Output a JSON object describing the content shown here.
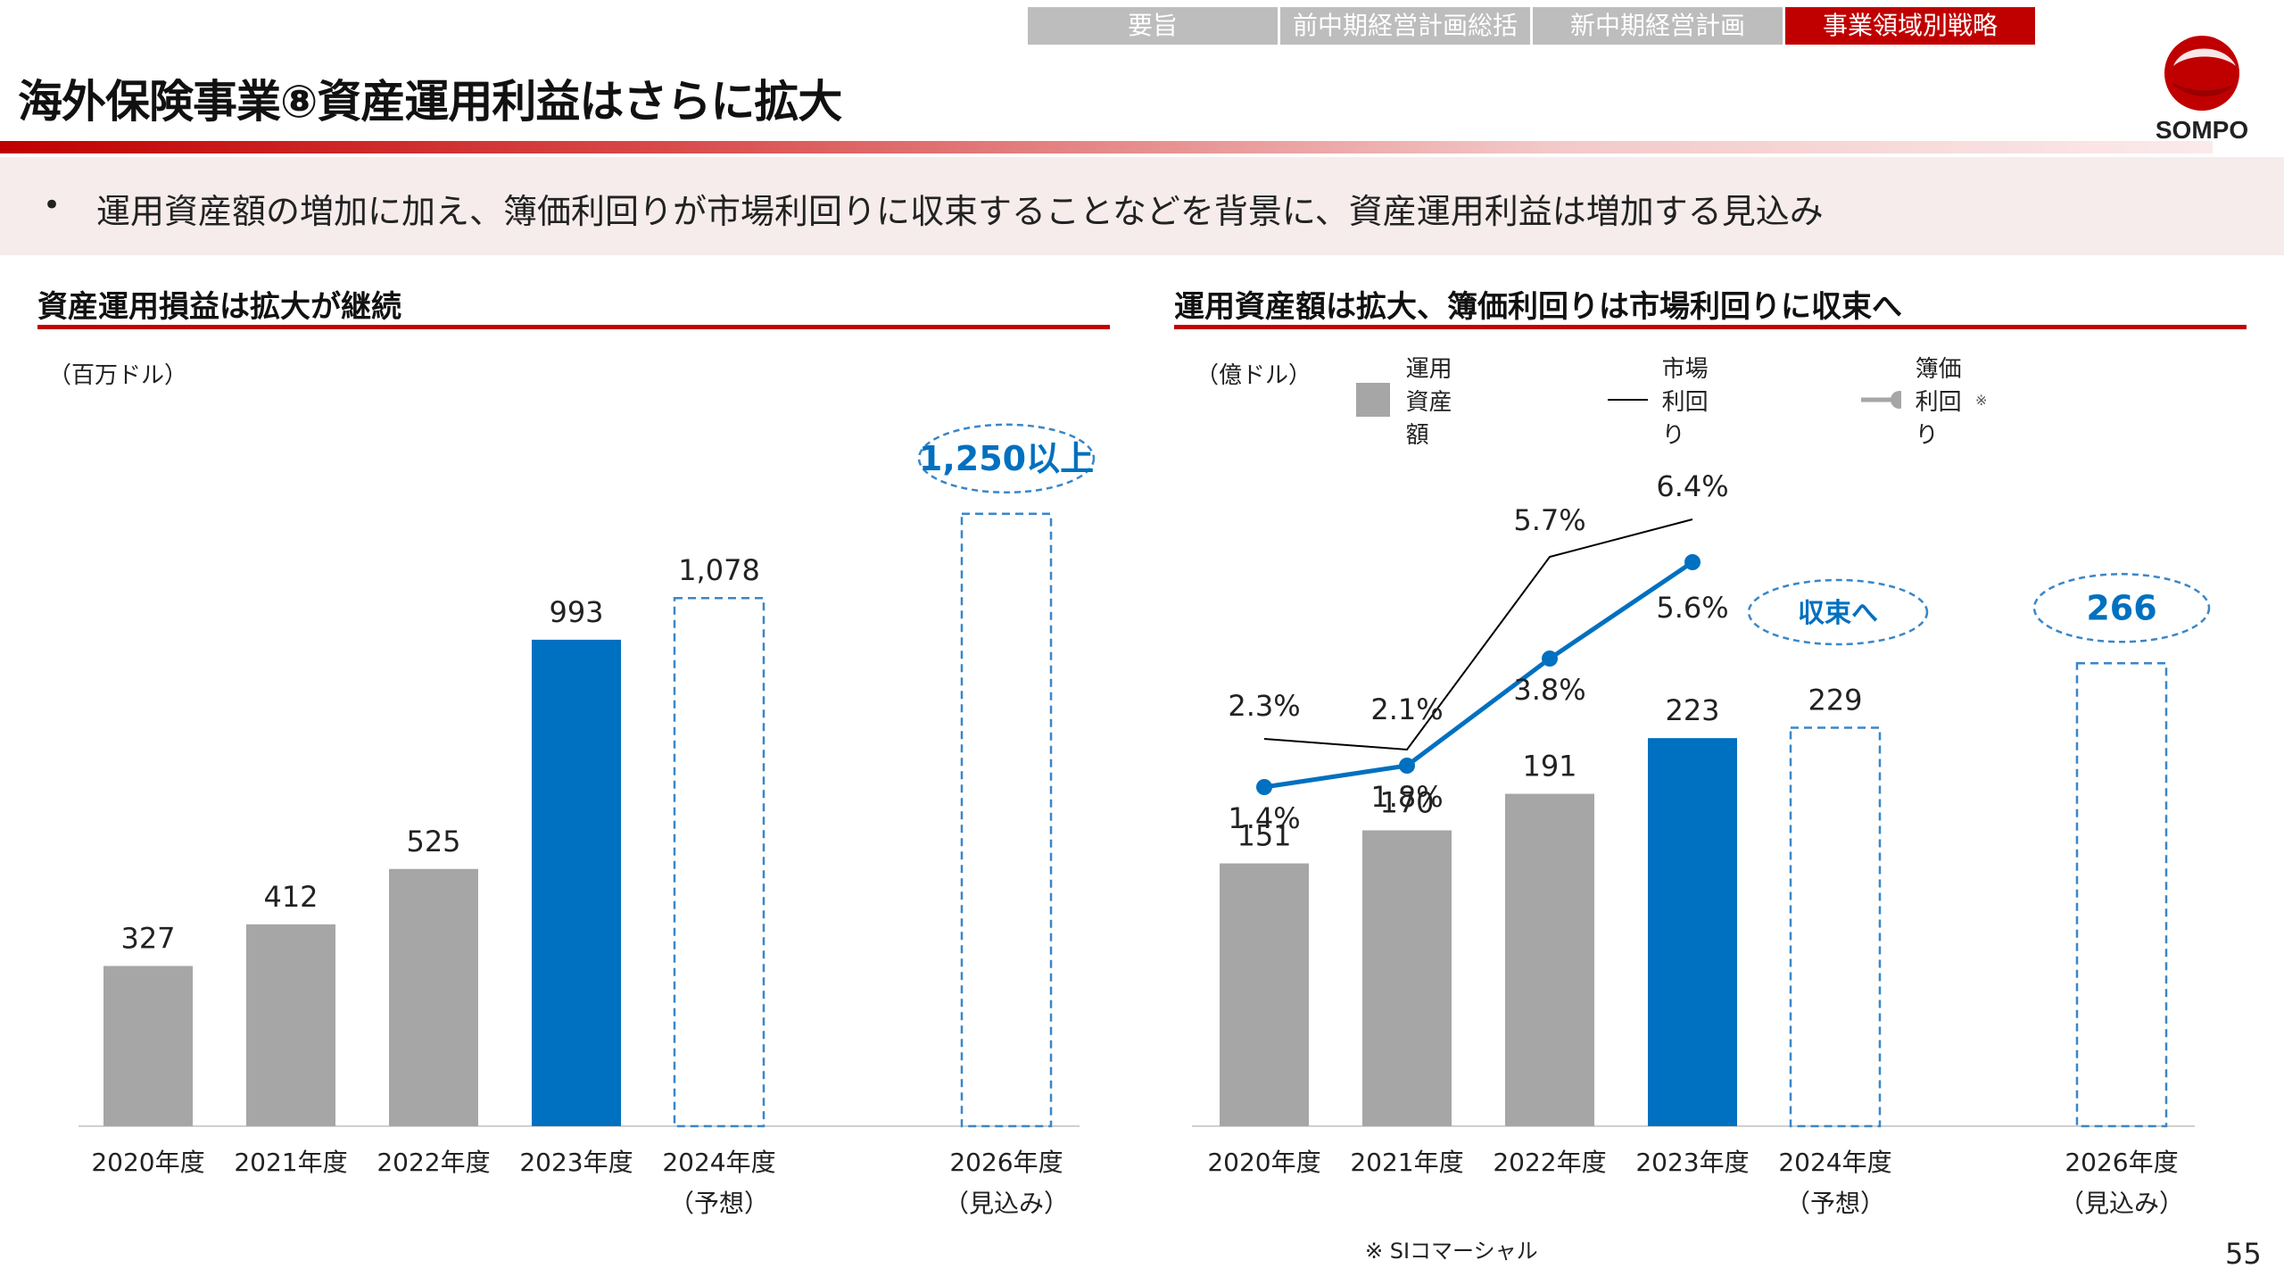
{
  "nav": {
    "tabs": [
      "要旨",
      "前中期経営計画総括",
      "新中期経営計画",
      "事業領域別戦略"
    ],
    "active_index": 3,
    "active_color": "#c00000",
    "inactive_color": "#bdbdbd"
  },
  "page_title": "海外保険事業⑧資産運用利益はさらに拡大",
  "logo": {
    "text": "SOMPO",
    "icon": "sompo-logo-icon",
    "color": "#c00000"
  },
  "summary": {
    "bullet": "•",
    "text": "運用資産額の増加に加え、簿価利回りが市場利回りに収束することなどを背景に、資産運用利益は増加する見込み"
  },
  "left_section": {
    "title": "資産運用損益は拡大が継続",
    "unit": "（百万ドル）"
  },
  "right_section": {
    "title": "運用資産額は拡大、簿価利回りは市場利回りに収束へ",
    "unit": "（億ドル）"
  },
  "legend": {
    "bar": "運用資産額",
    "market_line": "市場利回り",
    "book_line": "簿価利回り",
    "book_mark": "※"
  },
  "footnote": "※ SIコマーシャル",
  "page_number": "55",
  "colors": {
    "gray_bar": "#a6a6a6",
    "highlight_bar": "#0070c0",
    "dashed": "#3a86c8",
    "accent_red": "#c00000"
  },
  "chart_data": [
    {
      "type": "bar",
      "title": "資産運用損益は拡大が継続",
      "unit": "（百万ドル）",
      "categories": [
        "2020年度",
        "2021年度",
        "2022年度",
        "2023年度",
        "2024年度",
        "2026年度"
      ],
      "sub_labels": [
        "",
        "",
        "",
        "",
        "（予想）",
        "（見込み）"
      ],
      "values": [
        327,
        412,
        525,
        993,
        1078,
        1250
      ],
      "value_labels": [
        "327",
        "412",
        "525",
        "993",
        "1,078",
        "1,250以上"
      ],
      "styles": [
        "gray",
        "gray",
        "gray",
        "blue",
        "dashed",
        "dashed"
      ],
      "callout_index": 5,
      "ylim": [
        0,
        1450
      ],
      "grid": false
    },
    {
      "type": "bar",
      "title": "運用資産額は拡大、簿価利回りは市場利回りに収束へ",
      "unit": "（億ドル）",
      "categories": [
        "2020年度",
        "2021年度",
        "2022年度",
        "2023年度",
        "2024年度",
        "2026年度"
      ],
      "sub_labels": [
        "",
        "",
        "",
        "",
        "（予想）",
        "（見込み）"
      ],
      "values": [
        151,
        170,
        191,
        223,
        229,
        266
      ],
      "value_labels": [
        "151",
        "170",
        "191",
        "223",
        "229",
        "266"
      ],
      "styles": [
        "gray",
        "gray",
        "gray",
        "blue",
        "dashed",
        "dashed"
      ],
      "callout_index": 5,
      "ylim": [
        0,
        420
      ],
      "grid": false,
      "lines": [
        {
          "name": "市場利回り",
          "x_index": [
            0,
            1,
            2,
            3
          ],
          "values": [
            2.3,
            2.1,
            5.7,
            6.4
          ],
          "labels": [
            "2.3%",
            "2.1%",
            "5.7%",
            "6.4%"
          ],
          "color": "#000000"
        },
        {
          "name": "簿価利回り※",
          "x_index": [
            0,
            1,
            2,
            3
          ],
          "values": [
            1.4,
            1.8,
            3.8,
            5.6
          ],
          "labels": [
            "1.4%",
            "1.8%",
            "3.8%",
            "5.6%"
          ],
          "color": "#0070c0"
        }
      ],
      "annotation": "収束へ",
      "legend_position": "top"
    }
  ]
}
